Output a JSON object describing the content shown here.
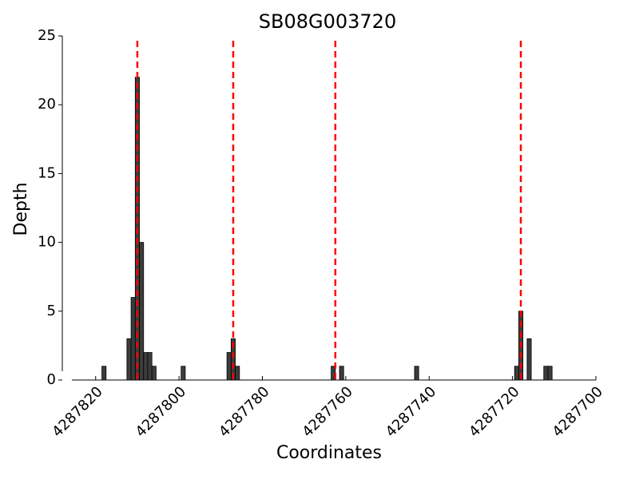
{
  "chart_data": {
    "type": "bar",
    "title": "SB08G003720",
    "x_label": "Coordinates",
    "y_label": "Depth",
    "x": [
      4287818,
      4287812,
      4287811,
      4287810,
      4287809,
      4287808,
      4287807,
      4287806,
      4287799,
      4287788,
      4287787,
      4287786,
      4287763,
      4287761,
      4287743,
      4287719,
      4287718,
      4287716,
      4287712,
      4287711
    ],
    "values": [
      1,
      3,
      6,
      22,
      10,
      2,
      2,
      1,
      1,
      2,
      3,
      1,
      1,
      1,
      1,
      1,
      5,
      3,
      1,
      1
    ],
    "bar_width": 1,
    "color": "#3c3c3c",
    "xlim": [
      4287828,
      4287700
    ],
    "xticks": [
      4287820,
      4287800,
      4287780,
      4287760,
      4287740,
      4287720,
      4287700
    ],
    "ylim": [
      0,
      25
    ],
    "yticks": [
      0,
      5,
      10,
      15,
      20,
      25
    ],
    "vlines": {
      "x": [
        4287810,
        4287787,
        4287762.5,
        4287718
      ],
      "color": "#ff0000"
    }
  }
}
